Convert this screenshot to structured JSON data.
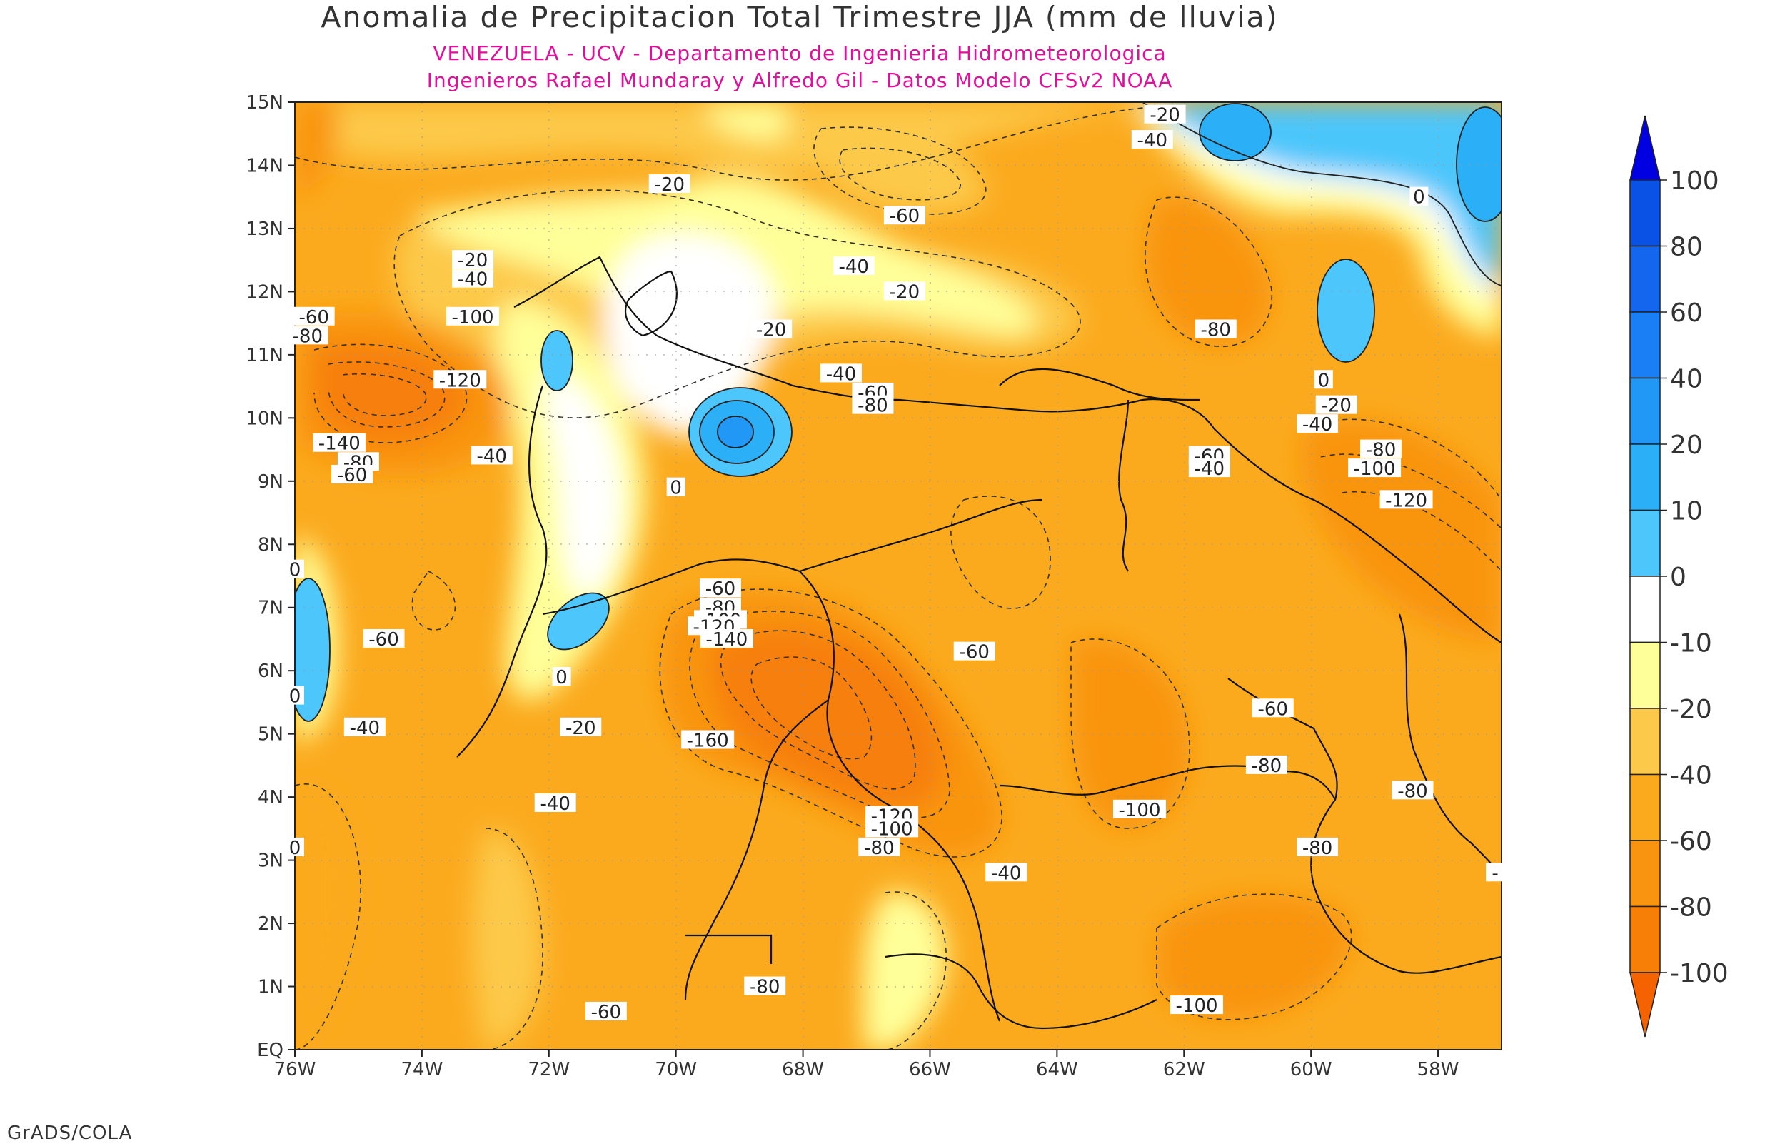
{
  "title": "Anomalia de Precipitacion Total Trimestre JJA (mm de lluvia)",
  "subtitle_1": "VENEZUELA - UCV - Departamento de Ingenieria Hidrometeorologica",
  "subtitle_2": "Ingenieros Rafael Mundaray y Alfredo Gil - Datos Modelo CFSv2 NOAA",
  "footer": "GrADS/COLA",
  "map": {
    "lon_range": [
      -76,
      -57
    ],
    "lat_range": [
      0,
      15
    ],
    "x_tick_labels": [
      "76W",
      "74W",
      "72W",
      "70W",
      "68W",
      "66W",
      "64W",
      "62W",
      "60W",
      "58W"
    ],
    "y_tick_labels": [
      "EQ",
      "1N",
      "2N",
      "3N",
      "4N",
      "5N",
      "6N",
      "7N",
      "8N",
      "9N",
      "10N",
      "11N",
      "12N",
      "13N",
      "14N",
      "15N"
    ],
    "contour_labels": [
      {
        "text": "-20",
        "lon": -70.1,
        "lat": 13.7
      },
      {
        "text": "-20",
        "lon": -62.3,
        "lat": 14.8
      },
      {
        "text": "-40",
        "lon": -62.5,
        "lat": 14.4
      },
      {
        "text": "-60",
        "lon": -66.4,
        "lat": 13.2
      },
      {
        "text": "-40",
        "lon": -67.2,
        "lat": 12.4
      },
      {
        "text": "-20",
        "lon": -66.4,
        "lat": 12.0
      },
      {
        "text": "0",
        "lon": -58.3,
        "lat": 13.5
      },
      {
        "text": "-20",
        "lon": -73.2,
        "lat": 12.5
      },
      {
        "text": "-40",
        "lon": -73.2,
        "lat": 12.2
      },
      {
        "text": "-60",
        "lon": -75.7,
        "lat": 11.6
      },
      {
        "text": "-80",
        "lon": -75.8,
        "lat": 11.3
      },
      {
        "text": "-100",
        "lon": -73.2,
        "lat": 11.6
      },
      {
        "text": "-120",
        "lon": -73.4,
        "lat": 10.6
      },
      {
        "text": "-140",
        "lon": -75.3,
        "lat": 9.6
      },
      {
        "text": "-80",
        "lon": -75.0,
        "lat": 9.3
      },
      {
        "text": "-60",
        "lon": -75.1,
        "lat": 9.1
      },
      {
        "text": "-40",
        "lon": -72.9,
        "lat": 9.4
      },
      {
        "text": "-20",
        "lon": -68.5,
        "lat": 11.4
      },
      {
        "text": "-80",
        "lon": -61.5,
        "lat": 11.4
      },
      {
        "text": "-40",
        "lon": -67.4,
        "lat": 10.7
      },
      {
        "text": "-60",
        "lon": -66.9,
        "lat": 10.4
      },
      {
        "text": "-80",
        "lon": -66.9,
        "lat": 10.2
      },
      {
        "text": "0",
        "lon": -70.0,
        "lat": 8.9
      },
      {
        "text": "0",
        "lon": -59.8,
        "lat": 10.6
      },
      {
        "text": "-20",
        "lon": -59.6,
        "lat": 10.2
      },
      {
        "text": "-40",
        "lon": -59.9,
        "lat": 9.9
      },
      {
        "text": "-80",
        "lon": -58.9,
        "lat": 9.5
      },
      {
        "text": "-100",
        "lon": -59.0,
        "lat": 9.2
      },
      {
        "text": "-60",
        "lon": -61.6,
        "lat": 9.4
      },
      {
        "text": "-40",
        "lon": -61.6,
        "lat": 9.2
      },
      {
        "text": "-120",
        "lon": -58.5,
        "lat": 8.7
      },
      {
        "text": "0",
        "lon": -76.0,
        "lat": 7.6
      },
      {
        "text": "-60",
        "lon": -69.3,
        "lat": 7.3
      },
      {
        "text": "-80",
        "lon": -69.3,
        "lat": 7.0
      },
      {
        "text": "-100",
        "lon": -69.3,
        "lat": 6.8
      },
      {
        "text": "-120",
        "lon": -69.4,
        "lat": 6.7
      },
      {
        "text": "-140",
        "lon": -69.2,
        "lat": 6.5
      },
      {
        "text": "-60",
        "lon": -74.6,
        "lat": 6.5
      },
      {
        "text": "-60",
        "lon": -65.3,
        "lat": 6.3
      },
      {
        "text": "0",
        "lon": -76.0,
        "lat": 5.6
      },
      {
        "text": "0",
        "lon": -71.8,
        "lat": 5.9
      },
      {
        "text": "-40",
        "lon": -74.9,
        "lat": 5.1
      },
      {
        "text": "-20",
        "lon": -71.5,
        "lat": 5.1
      },
      {
        "text": "-160",
        "lon": -69.5,
        "lat": 4.9
      },
      {
        "text": "-60",
        "lon": -60.6,
        "lat": 5.4
      },
      {
        "text": "-80",
        "lon": -60.7,
        "lat": 4.5
      },
      {
        "text": "-40",
        "lon": -71.9,
        "lat": 3.9
      },
      {
        "text": "-120",
        "lon": -66.6,
        "lat": 3.7
      },
      {
        "text": "-100",
        "lon": -66.6,
        "lat": 3.5
      },
      {
        "text": "-80",
        "lon": -66.8,
        "lat": 3.2
      },
      {
        "text": "-100",
        "lon": -62.7,
        "lat": 3.8
      },
      {
        "text": "-80",
        "lon": -59.9,
        "lat": 3.2
      },
      {
        "text": "-80",
        "lon": -58.4,
        "lat": 4.1
      },
      {
        "text": "0",
        "lon": -76.0,
        "lat": 3.2
      },
      {
        "text": "-40",
        "lon": -64.8,
        "lat": 2.8
      },
      {
        "text": "-",
        "lon": -57.1,
        "lat": 2.8
      },
      {
        "text": "-80",
        "lon": -68.6,
        "lat": 1.0
      },
      {
        "text": "-60",
        "lon": -71.1,
        "lat": 0.6
      },
      {
        "text": "-100",
        "lon": -61.8,
        "lat": 0.7
      }
    ]
  },
  "legend": {
    "labels": [
      "100",
      "80",
      "60",
      "40",
      "20",
      "10",
      "0",
      "-10",
      "-20",
      "-40",
      "-60",
      "-80",
      "-100"
    ],
    "colors": [
      "#0000e0",
      "#0a52e6",
      "#1466ee",
      "#1a7ff4",
      "#2298f6",
      "#2bb0f8",
      "#4cc6fb",
      "#ffffff",
      "#ffff99",
      "#fdc94a",
      "#fbaa1e",
      "#f99410",
      "#f77f08",
      "#f56200"
    ]
  }
}
